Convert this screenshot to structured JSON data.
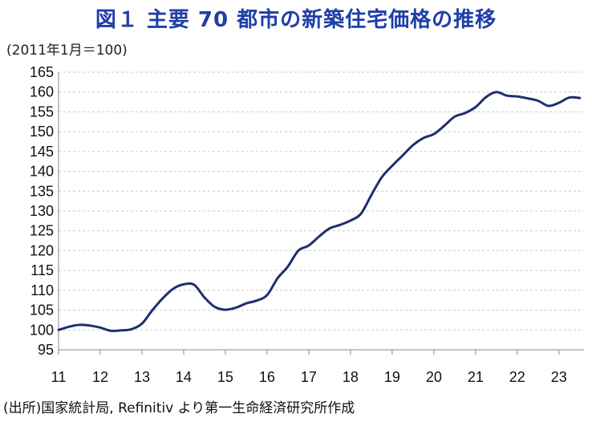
{
  "title": "図１ 主要 70 都市の新築住宅価格の推移",
  "unit_label": "(2011年1月＝100)",
  "source": "(出所)国家統計局, Refinitiv より第一生命経済研究所作成",
  "chart_data": {
    "type": "line",
    "title": "図１ 主要 70 都市の新築住宅価格の推移",
    "ylabel": "(2011年1月＝100)",
    "xlabel": "",
    "ylim": [
      95,
      165
    ],
    "yticks": [
      95,
      100,
      105,
      110,
      115,
      120,
      125,
      130,
      135,
      140,
      145,
      150,
      155,
      160,
      165
    ],
    "xlim": [
      11.0,
      23.6
    ],
    "xticks": [
      "11",
      "12",
      "13",
      "14",
      "15",
      "16",
      "17",
      "18",
      "19",
      "20",
      "21",
      "22",
      "23"
    ],
    "grid": true,
    "line_color": "#1f2f6e",
    "series": [
      {
        "x": [
          11.0,
          11.25,
          11.5,
          11.75,
          12.0,
          12.25,
          12.5,
          12.75,
          13.0,
          13.25,
          13.5,
          13.75,
          14.0,
          14.25,
          14.5,
          14.75,
          15.0,
          15.25,
          15.5,
          15.75,
          16.0,
          16.25,
          16.5,
          16.75,
          17.0,
          17.25,
          17.5,
          17.75,
          18.0,
          18.25,
          18.5,
          18.75,
          19.0,
          19.25,
          19.5,
          19.75,
          20.0,
          20.25,
          20.5,
          20.75,
          21.0,
          21.25,
          21.5,
          21.75,
          22.0,
          22.25,
          22.5,
          22.75,
          23.0,
          23.25,
          23.5
        ],
        "y": [
          100.0,
          100.8,
          101.3,
          101.1,
          100.6,
          99.8,
          99.9,
          100.2,
          101.6,
          105.0,
          108.0,
          110.4,
          111.5,
          111.4,
          108.2,
          105.8,
          105.1,
          105.6,
          106.7,
          107.4,
          108.8,
          113.0,
          116.0,
          120.0,
          121.3,
          123.6,
          125.6,
          126.5,
          127.6,
          129.3,
          134.0,
          138.5,
          141.4,
          144.0,
          146.6,
          148.4,
          149.4,
          151.5,
          153.8,
          154.7,
          156.2,
          158.7,
          160.0,
          159.1,
          158.9,
          158.4,
          157.8,
          156.5,
          157.3,
          158.6,
          158.5
        ]
      }
    ]
  }
}
